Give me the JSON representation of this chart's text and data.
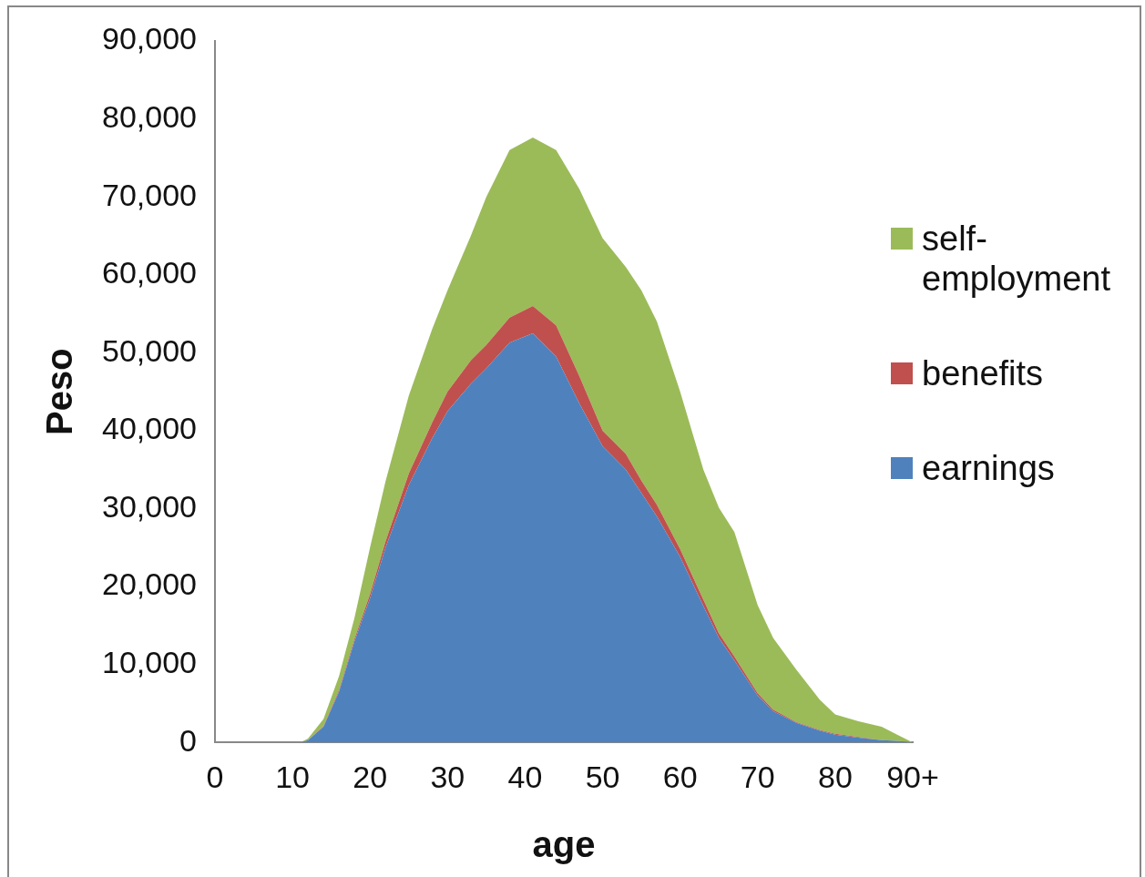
{
  "chart_data": {
    "type": "area",
    "stacked": true,
    "xlabel": "age",
    "ylabel": "Peso",
    "x": [
      0,
      10,
      11,
      12,
      14,
      16,
      18,
      20,
      22,
      25,
      28,
      30,
      33,
      35,
      38,
      41,
      44,
      47,
      50,
      53,
      55,
      57,
      60,
      63,
      65,
      67,
      70,
      72,
      75,
      78,
      80,
      83,
      86,
      88,
      90
    ],
    "series": [
      {
        "name": "earnings",
        "color": "#4f81bd",
        "values": [
          0,
          0,
          0,
          300,
          2000,
          6500,
          13000,
          18500,
          25000,
          33000,
          39000,
          42500,
          46000,
          48000,
          51300,
          52500,
          49500,
          43500,
          38000,
          35000,
          32000,
          29000,
          23800,
          17500,
          13400,
          10500,
          6000,
          4000,
          2500,
          1500,
          1000,
          600,
          300,
          200,
          0
        ]
      },
      {
        "name": "benefits",
        "color": "#c0504d",
        "values": [
          0,
          0,
          0,
          0,
          100,
          200,
          300,
          500,
          800,
          1500,
          2000,
          2500,
          3000,
          3000,
          3200,
          3500,
          4000,
          3500,
          2000,
          2000,
          1600,
          1500,
          1000,
          800,
          600,
          500,
          300,
          200,
          100,
          100,
          100,
          100,
          0,
          0,
          0
        ]
      },
      {
        "name": "self-employment",
        "color": "#9bbb59",
        "values": [
          0,
          0,
          0,
          200,
          900,
          1800,
          2700,
          6000,
          7700,
          10000,
          12000,
          13000,
          16000,
          19000,
          21500,
          21600,
          22500,
          24000,
          24700,
          24000,
          24400,
          23500,
          20200,
          16700,
          16100,
          16000,
          11300,
          9200,
          6700,
          3900,
          2500,
          2000,
          1700,
          800,
          0
        ]
      }
    ],
    "xlim": [
      0,
      90
    ],
    "xticks": [
      0,
      10,
      20,
      30,
      40,
      50,
      60,
      70,
      80,
      {
        "value": 90,
        "label": "90+"
      }
    ],
    "ylim": [
      0,
      90000
    ],
    "yticks": [
      {
        "value": 0,
        "label": "0"
      },
      {
        "value": 10000,
        "label": "10,000"
      },
      {
        "value": 20000,
        "label": "20,000"
      },
      {
        "value": 30000,
        "label": "30,000"
      },
      {
        "value": 40000,
        "label": "40,000"
      },
      {
        "value": 50000,
        "label": "50,000"
      },
      {
        "value": 60000,
        "label": "60,000"
      },
      {
        "value": 70000,
        "label": "70,000"
      },
      {
        "value": 80000,
        "label": "80,000"
      },
      {
        "value": 90000,
        "label": "90,000"
      }
    ],
    "grid": false,
    "legend": "right"
  }
}
